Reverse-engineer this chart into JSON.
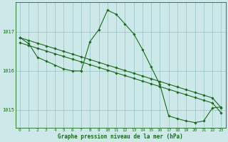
{
  "title": "Graphe pression niveau de la mer (hPa)",
  "background_color": "#cce8e8",
  "line_color": "#1a6b1a",
  "grid_color": "#88bbbb",
  "xlim_min": -0.5,
  "xlim_max": 23.5,
  "ylim_min": 1014.55,
  "ylim_max": 1017.75,
  "yticks": [
    1015,
    1016,
    1017
  ],
  "xticks": [
    0,
    1,
    2,
    3,
    4,
    5,
    6,
    7,
    8,
    9,
    10,
    11,
    12,
    13,
    14,
    15,
    16,
    17,
    18,
    19,
    20,
    21,
    22,
    23
  ],
  "line1_x": [
    0,
    1,
    2,
    3,
    4,
    5,
    6,
    7,
    8,
    9,
    10,
    11,
    12,
    13,
    14,
    15,
    16,
    17,
    18,
    19,
    20,
    21,
    22,
    23
  ],
  "line1_y": [
    1016.85,
    1016.78,
    1016.71,
    1016.64,
    1016.57,
    1016.5,
    1016.43,
    1016.36,
    1016.29,
    1016.22,
    1016.15,
    1016.08,
    1016.01,
    1015.94,
    1015.87,
    1015.8,
    1015.73,
    1015.66,
    1015.59,
    1015.52,
    1015.45,
    1015.38,
    1015.31,
    1015.06
  ],
  "line2_x": [
    0,
    1,
    2,
    3,
    4,
    5,
    6,
    7,
    8,
    9,
    10,
    11,
    12,
    13,
    14,
    15,
    16,
    17,
    18,
    19,
    20,
    21,
    22,
    23
  ],
  "line2_y": [
    1016.72,
    1016.65,
    1016.58,
    1016.51,
    1016.44,
    1016.37,
    1016.3,
    1016.23,
    1016.16,
    1016.09,
    1016.02,
    1015.95,
    1015.88,
    1015.81,
    1015.74,
    1015.67,
    1015.6,
    1015.53,
    1015.46,
    1015.39,
    1015.32,
    1015.25,
    1015.18,
    1014.93
  ],
  "line3_x": [
    0,
    1,
    2,
    3,
    4,
    5,
    6,
    7,
    8,
    9,
    10,
    11,
    12,
    13,
    14,
    15,
    16,
    17,
    18,
    19,
    20,
    21,
    22,
    23
  ],
  "line3_y": [
    1016.85,
    1016.7,
    1016.35,
    1016.25,
    1016.15,
    1016.05,
    1016.0,
    1016.0,
    1016.75,
    1017.05,
    1017.55,
    1017.45,
    1017.2,
    1016.95,
    1016.55,
    1016.1,
    1015.65,
    1014.85,
    1014.78,
    1014.72,
    1014.68,
    1014.72,
    1015.05,
    1015.08
  ],
  "marker_size": 1.8,
  "linewidth": 0.8,
  "tick_fontsize": 4.5,
  "xlabel_fontsize": 5.5
}
